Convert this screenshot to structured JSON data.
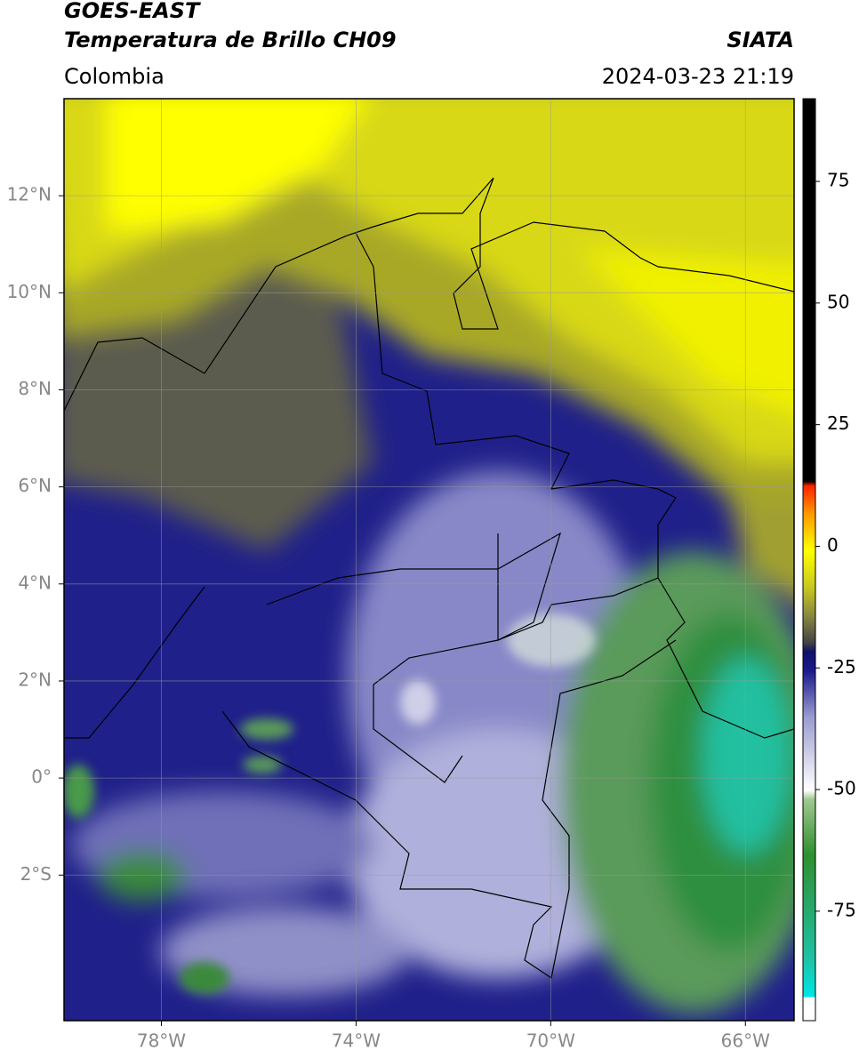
{
  "header": {
    "title": "GOES-EAST",
    "subtitle": "Temperatura de Brillo CH09",
    "source": "SIATA",
    "region": "Colombia",
    "datetime": "2024-03-23 21:19"
  },
  "chart_data": {
    "type": "map",
    "xlim": [
      -80,
      -65
    ],
    "ylim": [
      -5,
      14
    ],
    "xticks": [
      {
        "value": -78,
        "label": "78°W"
      },
      {
        "value": -74,
        "label": "74°W"
      },
      {
        "value": -70,
        "label": "70°W"
      },
      {
        "value": -66,
        "label": "66°W"
      }
    ],
    "yticks": [
      {
        "value": 12,
        "label": "12°N"
      },
      {
        "value": 10,
        "label": "10°N"
      },
      {
        "value": 8,
        "label": "8°N"
      },
      {
        "value": 6,
        "label": "6°N"
      },
      {
        "value": 4,
        "label": "4°N"
      },
      {
        "value": 2,
        "label": "2°N"
      },
      {
        "value": 0,
        "label": "0°"
      },
      {
        "value": -2,
        "label": "2°S"
      }
    ],
    "grid": true,
    "colorbar": {
      "lim": [
        -97.5,
        92
      ],
      "ticks": [
        75,
        50,
        25,
        0,
        -25,
        -50,
        -75
      ]
    }
  }
}
